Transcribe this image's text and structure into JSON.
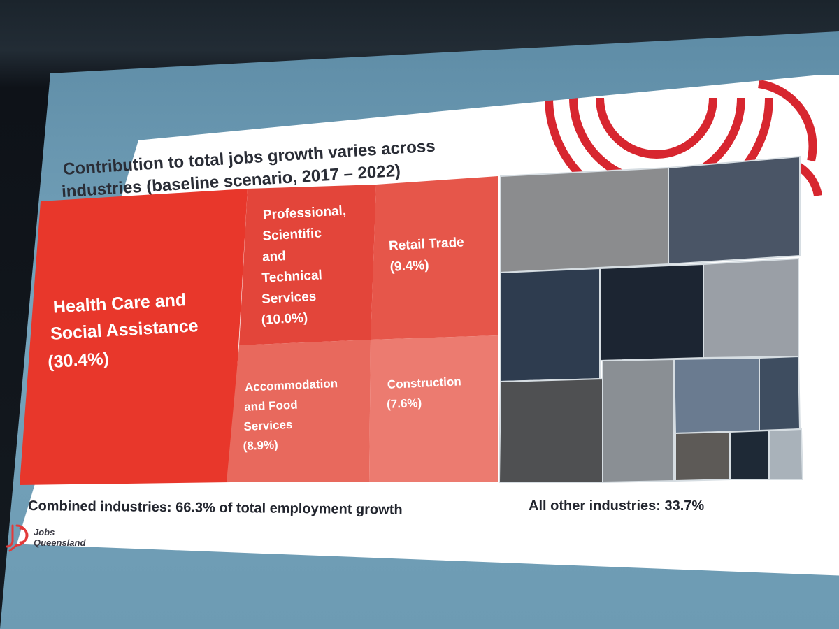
{
  "slide": {
    "title_line1": "Contribution to total jobs growth varies across",
    "title_line2": "industries (baseline scenario, 2017 – 2022)",
    "footer_left": "Combined industries: 66.3% of total employment growth",
    "footer_right": "All other industries: 33.7%",
    "logo_line1": "Jobs",
    "logo_line2": "Queensland",
    "logo_icon": "jobs-queensland-mark"
  },
  "colors": {
    "primary_red": "#e8372b",
    "secondary_red": "#e54a3c",
    "light_red": "#ea6b5f",
    "label_text": "#ffffff",
    "others_dark": "#1c2532",
    "others_mid": "#3f4d5f",
    "others_grey": "#8a8d90"
  },
  "chart_data": {
    "type": "treemap",
    "title": "Contribution to total jobs growth varies across industries (baseline scenario, 2017 – 2022)",
    "unit": "% of total employment growth",
    "series": [
      {
        "name": "Combined industries",
        "total": 66.3
      },
      {
        "name": "All other industries",
        "total": 33.7
      }
    ],
    "items": [
      {
        "label": "Health Care and Social Assistance",
        "value": 30.4,
        "value_text": "(30.4%)",
        "group": "Combined industries"
      },
      {
        "label": "Professional, Scientific and Technical Services",
        "value": 10.0,
        "value_text": "(10.0%)",
        "group": "Combined industries"
      },
      {
        "label": "Retail Trade",
        "value": 9.4,
        "value_text": "(9.4%)",
        "group": "Combined industries"
      },
      {
        "label": "Accommodation and Food Services",
        "value": 8.9,
        "value_text": "(8.9%)",
        "group": "Combined industries"
      },
      {
        "label": "Construction",
        "value": 7.6,
        "value_text": "(7.6%)",
        "group": "Combined industries"
      }
    ],
    "other_group": {
      "label": "All other industries",
      "value": 33.7,
      "unlabelled_tiles": 11
    }
  }
}
